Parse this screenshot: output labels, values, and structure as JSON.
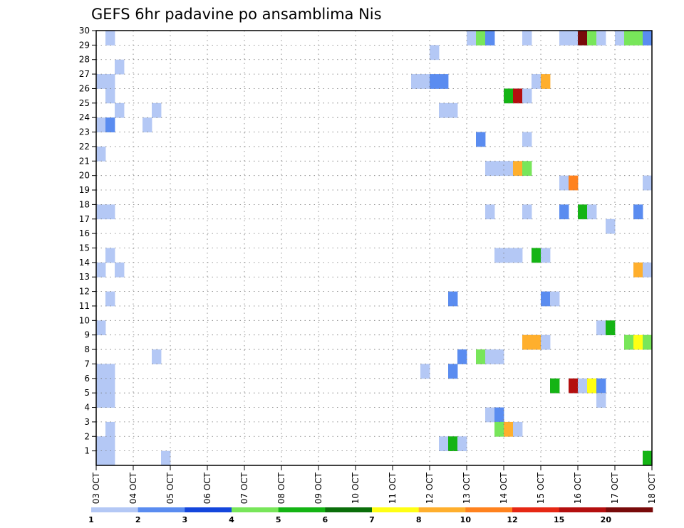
{
  "chart_data": {
    "type": "heatmap",
    "title": "GEFS 6hr padavine po ansamblima Nis",
    "xlabel": "",
    "ylabel": "",
    "x_tick_labels": [
      "03 OCT",
      "04 OCT",
      "05 OCT",
      "06 OCT",
      "07 OCT",
      "08 OCT",
      "09 OCT",
      "10 OCT",
      "11 OCT",
      "12 OCT",
      "13 OCT",
      "14 OCT",
      "15 OCT",
      "16 OCT",
      "17 OCT",
      "18 OCT"
    ],
    "y_tick_labels": [
      "1",
      "2",
      "3",
      "4",
      "5",
      "6",
      "7",
      "8",
      "9",
      "10",
      "11",
      "12",
      "13",
      "14",
      "15",
      "16",
      "17",
      "18",
      "19",
      "20",
      "21",
      "22",
      "23",
      "24",
      "25",
      "26",
      "27",
      "28",
      "29",
      "30"
    ],
    "x_range_days": [
      0,
      15
    ],
    "y_range": [
      0,
      30
    ],
    "grid": true,
    "legend_placement": "bottom",
    "legend": {
      "labels": [
        "1",
        "2",
        "3",
        "4",
        "5",
        "6",
        "7",
        "8",
        "10",
        "12",
        "15",
        "20"
      ],
      "colors": [
        "#b4c8f5",
        "#5a8cf0",
        "#1446dc",
        "#78e65a",
        "#14b414",
        "#0a6e0a",
        "#ffff14",
        "#ffaf2d",
        "#ff821e",
        "#e62814",
        "#b40f0f",
        "#780a0a"
      ]
    },
    "cells": [
      {
        "x": 0.0,
        "y": 0,
        "v": 1.5
      },
      {
        "x": 0.25,
        "y": 0,
        "v": 1
      },
      {
        "x": 0.0,
        "y": 1,
        "v": 1
      },
      {
        "x": 0.25,
        "y": 1,
        "v": 1
      },
      {
        "x": 0.25,
        "y": 2,
        "v": 1
      },
      {
        "x": 0.0,
        "y": 4,
        "v": 1
      },
      {
        "x": 0.25,
        "y": 4,
        "v": 1.5
      },
      {
        "x": 0.0,
        "y": 5,
        "v": 1.5
      },
      {
        "x": 0.25,
        "y": 5,
        "v": 1.5
      },
      {
        "x": 0.0,
        "y": 6,
        "v": 1.5
      },
      {
        "x": 0.25,
        "y": 6,
        "v": 1.5
      },
      {
        "x": 0.0,
        "y": 9,
        "v": 1
      },
      {
        "x": 0.25,
        "y": 11,
        "v": 1
      },
      {
        "x": 0.0,
        "y": 13,
        "v": 1
      },
      {
        "x": 0.5,
        "y": 13,
        "v": 1
      },
      {
        "x": 0.25,
        "y": 14,
        "v": 1
      },
      {
        "x": 0.0,
        "y": 17,
        "v": 1
      },
      {
        "x": 0.25,
        "y": 17,
        "v": 1
      },
      {
        "x": 0.0,
        "y": 21,
        "v": 1.5
      },
      {
        "x": 0.0,
        "y": 23,
        "v": 1
      },
      {
        "x": 0.25,
        "y": 23,
        "v": 2.5
      },
      {
        "x": 0.5,
        "y": 24,
        "v": 1
      },
      {
        "x": 0.25,
        "y": 25,
        "v": 1
      },
      {
        "x": 0.0,
        "y": 26,
        "v": 1.5
      },
      {
        "x": 0.25,
        "y": 26,
        "v": 1
      },
      {
        "x": 0.5,
        "y": 27,
        "v": 1
      },
      {
        "x": 0.25,
        "y": 29,
        "v": 1
      },
      {
        "x": 1.25,
        "y": 23,
        "v": 1
      },
      {
        "x": 1.5,
        "y": 24,
        "v": 1
      },
      {
        "x": 1.5,
        "y": 7,
        "v": 1
      },
      {
        "x": 1.75,
        "y": 0,
        "v": 1
      },
      {
        "x": 8.5,
        "y": 26,
        "v": 1
      },
      {
        "x": 8.75,
        "y": 26,
        "v": 1.5
      },
      {
        "x": 9.0,
        "y": 26,
        "v": 2.5
      },
      {
        "x": 9.25,
        "y": 26,
        "v": 2.5
      },
      {
        "x": 9.0,
        "y": 28,
        "v": 1
      },
      {
        "x": 9.25,
        "y": 24,
        "v": 1.5
      },
      {
        "x": 9.5,
        "y": 24,
        "v": 1
      },
      {
        "x": 8.75,
        "y": 6,
        "v": 1
      },
      {
        "x": 9.25,
        "y": 1,
        "v": 1
      },
      {
        "x": 9.5,
        "y": 1,
        "v": 5.5
      },
      {
        "x": 9.75,
        "y": 1,
        "v": 1
      },
      {
        "x": 9.5,
        "y": 6,
        "v": 2.5
      },
      {
        "x": 9.5,
        "y": 11,
        "v": 2.5
      },
      {
        "x": 9.75,
        "y": 7,
        "v": 2.5
      },
      {
        "x": 10.0,
        "y": 29,
        "v": 1
      },
      {
        "x": 10.25,
        "y": 29,
        "v": 4.5
      },
      {
        "x": 10.5,
        "y": 29,
        "v": 2.5
      },
      {
        "x": 10.25,
        "y": 22,
        "v": 2.5
      },
      {
        "x": 10.5,
        "y": 20,
        "v": 1
      },
      {
        "x": 10.75,
        "y": 20,
        "v": 1.5
      },
      {
        "x": 11.0,
        "y": 20,
        "v": 1
      },
      {
        "x": 11.25,
        "y": 20,
        "v": 8.5
      },
      {
        "x": 11.5,
        "y": 20,
        "v": 4.5
      },
      {
        "x": 10.5,
        "y": 17,
        "v": 1
      },
      {
        "x": 10.75,
        "y": 14,
        "v": 1
      },
      {
        "x": 11.0,
        "y": 14,
        "v": 1
      },
      {
        "x": 11.25,
        "y": 14,
        "v": 1
      },
      {
        "x": 10.25,
        "y": 7,
        "v": 4.5
      },
      {
        "x": 10.5,
        "y": 7,
        "v": 1.5
      },
      {
        "x": 10.75,
        "y": 7,
        "v": 1.5
      },
      {
        "x": 10.5,
        "y": 3,
        "v": 1.5
      },
      {
        "x": 10.75,
        "y": 3,
        "v": 2.5
      },
      {
        "x": 10.75,
        "y": 2,
        "v": 4.5
      },
      {
        "x": 11.0,
        "y": 2,
        "v": 8.5
      },
      {
        "x": 11.25,
        "y": 2,
        "v": 1
      },
      {
        "x": 11.0,
        "y": 25,
        "v": 5.5
      },
      {
        "x": 11.25,
        "y": 25,
        "v": 16
      },
      {
        "x": 11.5,
        "y": 25,
        "v": 1.5
      },
      {
        "x": 11.5,
        "y": 29,
        "v": 1
      },
      {
        "x": 11.5,
        "y": 22,
        "v": 1
      },
      {
        "x": 11.5,
        "y": 17,
        "v": 1
      },
      {
        "x": 11.5,
        "y": 8,
        "v": 8.5
      },
      {
        "x": 11.75,
        "y": 8,
        "v": 8.5
      },
      {
        "x": 12.0,
        "y": 8,
        "v": 1.5
      },
      {
        "x": 11.75,
        "y": 14,
        "v": 5.5
      },
      {
        "x": 12.0,
        "y": 14,
        "v": 1.5
      },
      {
        "x": 11.75,
        "y": 26,
        "v": 1
      },
      {
        "x": 12.0,
        "y": 26,
        "v": 8.5
      },
      {
        "x": 12.0,
        "y": 11,
        "v": 2
      },
      {
        "x": 12.25,
        "y": 11,
        "v": 1
      },
      {
        "x": 12.25,
        "y": 5,
        "v": 5.5
      },
      {
        "x": 12.5,
        "y": 29,
        "v": 1
      },
      {
        "x": 12.75,
        "y": 29,
        "v": 1.5
      },
      {
        "x": 13.0,
        "y": 29,
        "v": 20
      },
      {
        "x": 13.25,
        "y": 29,
        "v": 4.5
      },
      {
        "x": 13.5,
        "y": 29,
        "v": 1
      },
      {
        "x": 12.5,
        "y": 19,
        "v": 1.5
      },
      {
        "x": 12.75,
        "y": 19,
        "v": 11
      },
      {
        "x": 12.5,
        "y": 17,
        "v": 2.5
      },
      {
        "x": 13.0,
        "y": 17,
        "v": 5.5
      },
      {
        "x": 13.25,
        "y": 17,
        "v": 1
      },
      {
        "x": 12.75,
        "y": 5,
        "v": 16
      },
      {
        "x": 13.0,
        "y": 5,
        "v": 1
      },
      {
        "x": 13.25,
        "y": 5,
        "v": 7.5
      },
      {
        "x": 13.5,
        "y": 5,
        "v": 2.5
      },
      {
        "x": 13.5,
        "y": 4,
        "v": 1
      },
      {
        "x": 13.5,
        "y": 9,
        "v": 1
      },
      {
        "x": 13.75,
        "y": 9,
        "v": 5.5
      },
      {
        "x": 13.75,
        "y": 16,
        "v": 1
      },
      {
        "x": 14.0,
        "y": 29,
        "v": 1.5
      },
      {
        "x": 14.25,
        "y": 29,
        "v": 4.5
      },
      {
        "x": 14.5,
        "y": 29,
        "v": 4.5
      },
      {
        "x": 14.75,
        "y": 29,
        "v": 2.5
      },
      {
        "x": 14.75,
        "y": 19,
        "v": 1.5
      },
      {
        "x": 14.5,
        "y": 17,
        "v": 2.5
      },
      {
        "x": 14.5,
        "y": 13,
        "v": 8.5
      },
      {
        "x": 14.75,
        "y": 13,
        "v": 1
      },
      {
        "x": 14.25,
        "y": 8,
        "v": 4.5
      },
      {
        "x": 14.5,
        "y": 8,
        "v": 7.5
      },
      {
        "x": 14.75,
        "y": 8,
        "v": 4.5
      },
      {
        "x": 14.75,
        "y": 0,
        "v": 5.5
      }
    ]
  }
}
